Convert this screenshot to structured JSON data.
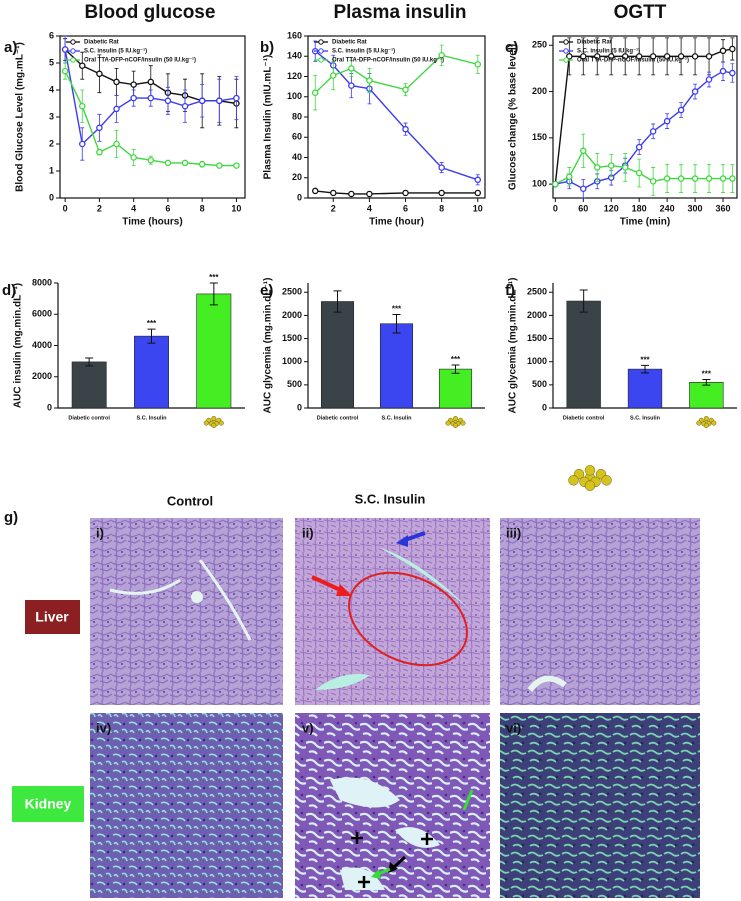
{
  "chart_data": [
    {
      "type": "line",
      "label": "a)",
      "title": "Blood glucose",
      "x_label": "Time (hours)",
      "y_label": "Blood Glucose Level (mg.mL⁻¹)",
      "x": [
        0,
        1,
        2,
        3,
        4,
        5,
        6,
        7,
        8,
        9,
        10
      ],
      "xlim": [
        -0.3,
        10.5
      ],
      "xticks": [
        0,
        2,
        4,
        6,
        8,
        10
      ],
      "ylim": [
        0,
        6
      ],
      "yticks": [
        0,
        1,
        2,
        3,
        4,
        5,
        6
      ],
      "series": [
        {
          "name": "Diabetic Rat",
          "color": "#111111",
          "values": [
            5.5,
            4.9,
            4.6,
            4.3,
            4.2,
            4.3,
            3.9,
            3.8,
            3.6,
            3.6,
            3.5
          ],
          "errors": [
            0.4,
            0.5,
            0.7,
            0.5,
            0.5,
            0.6,
            0.7,
            0.6,
            1.0,
            0.9,
            0.9
          ]
        },
        {
          "name": "S.C. insulin (5 IU.kg⁻¹)",
          "color": "#3b3bf0",
          "values": [
            5.5,
            2.0,
            2.6,
            3.3,
            3.7,
            3.7,
            3.6,
            3.4,
            3.6,
            3.6,
            3.7
          ],
          "errors": [
            0.5,
            0.6,
            0.5,
            0.5,
            0.3,
            0.3,
            0.5,
            0.6,
            0.6,
            0.8,
            0.8
          ]
        },
        {
          "name": "Oral TTA-DFP-nCOF/insulin (50 IU.kg⁻¹)",
          "color": "#3fd83f",
          "values": [
            4.7,
            3.4,
            1.7,
            2.0,
            1.5,
            1.4,
            1.3,
            1.3,
            1.25,
            1.2,
            1.2
          ],
          "errors": [
            0.3,
            0.6,
            0.1,
            0.5,
            0.3,
            0.15,
            0.05,
            0.05,
            0.1,
            0.05,
            0.05
          ]
        }
      ]
    },
    {
      "type": "line",
      "label": "b)",
      "title": "Plasma insulin",
      "x_label": "Time (hour)",
      "y_label": "Plasma Insulin (mIU.mL⁻¹)",
      "x": [
        1,
        2,
        3,
        4,
        6,
        8,
        10
      ],
      "xlim": [
        0.6,
        10.4
      ],
      "xticks": [
        2,
        4,
        6,
        8,
        10
      ],
      "ylim": [
        0,
        160
      ],
      "yticks": [
        0,
        20,
        40,
        60,
        80,
        100,
        120,
        140,
        160
      ],
      "series": [
        {
          "name": "Diabetic Rat",
          "color": "#111111",
          "values": [
            7,
            5,
            4,
            4,
            5,
            5,
            5
          ],
          "errors": [
            1,
            1,
            1,
            1,
            1,
            1,
            1
          ]
        },
        {
          "name": "S.C. insulin (5 IU.kg⁻¹)",
          "color": "#3b3bf0",
          "values": [
            145,
            131,
            111,
            108,
            68,
            30,
            18
          ],
          "errors": [
            10,
            10,
            12,
            15,
            6,
            5,
            5
          ]
        },
        {
          "name": "Oral TTA-DFP-nCOF/insulin (50 IU.kg⁻¹)",
          "color": "#3fd83f",
          "values": [
            104,
            121,
            128,
            116,
            107,
            141,
            132
          ],
          "errors": [
            17,
            14,
            8,
            12,
            6,
            10,
            9
          ]
        }
      ]
    },
    {
      "type": "line",
      "label": "c)",
      "title": "OGTT",
      "x_label": "Time (min)",
      "y_label": "Glucose change (% base level)",
      "x": [
        0,
        30,
        60,
        90,
        120,
        150,
        180,
        210,
        240,
        270,
        300,
        330,
        360,
        380
      ],
      "xlim": [
        -5,
        390
      ],
      "xticks": [
        0,
        60,
        120,
        180,
        240,
        300,
        360
      ],
      "ylim": [
        85,
        260
      ],
      "yticks": [
        100,
        150,
        200,
        250
      ],
      "series": [
        {
          "name": "Diabetic Rat",
          "color": "#111111",
          "values": [
            100,
            238,
            238,
            238,
            238,
            238,
            238,
            238,
            238,
            238,
            238,
            238,
            244,
            246
          ],
          "errors": [
            0,
            20,
            20,
            20,
            20,
            20,
            20,
            20,
            20,
            20,
            20,
            20,
            12,
            12
          ]
        },
        {
          "name": "S.C. insulin (5 IU.kg⁻¹)",
          "color": "#3b3bf0",
          "values": [
            100,
            103,
            95,
            103,
            107,
            120,
            140,
            157,
            168,
            180,
            200,
            213,
            222,
            220
          ],
          "errors": [
            0,
            8,
            10,
            8,
            8,
            8,
            8,
            8,
            8,
            8,
            8,
            8,
            10,
            10
          ]
        },
        {
          "name": "Oral TTA-DFP-nCOF/insulin (50 IU.kg⁻¹)",
          "color": "#3fd83f",
          "values": [
            100,
            108,
            136,
            118,
            120,
            118,
            112,
            103,
            106,
            106,
            106,
            106,
            106,
            106
          ],
          "errors": [
            0,
            10,
            18,
            15,
            12,
            15,
            15,
            15,
            15,
            15,
            15,
            15,
            15,
            15
          ]
        }
      ]
    },
    {
      "type": "bar",
      "label": "d)",
      "y_label": "AUC insulin (mg.min.dL⁻¹)",
      "categories": [
        "Diabetic control",
        "S.C. Insulin",
        null
      ],
      "values": [
        2950,
        4600,
        7300
      ],
      "errors": [
        250,
        450,
        700
      ],
      "colors": [
        "#3a4348",
        "#3c46f0",
        "#44ee22"
      ],
      "significance": [
        null,
        "***",
        "***"
      ],
      "ylim": [
        0,
        8000
      ],
      "yticks": [
        0,
        2000,
        4000,
        6000,
        8000
      ]
    },
    {
      "type": "bar",
      "label": "e)",
      "y_label": "AUC glycemia (mg.min.dL⁻¹)",
      "categories": [
        "Diabetic control",
        "S.C. Insulin",
        null
      ],
      "values": [
        2300,
        1820,
        840
      ],
      "errors": [
        230,
        200,
        90
      ],
      "colors": [
        "#3a4348",
        "#3c46f0",
        "#44ee22"
      ],
      "significance": [
        null,
        "***",
        "***"
      ],
      "ylim": [
        0,
        2700
      ],
      "yticks": [
        0,
        500,
        1000,
        1500,
        2000,
        2500
      ]
    },
    {
      "type": "bar",
      "label": "f)",
      "y_label": "AUC glycemia (mg.min.dL⁻¹)",
      "categories": [
        "Diabetic control",
        "S.C. Insulin",
        null
      ],
      "values": [
        2310,
        840,
        555
      ],
      "errors": [
        240,
        80,
        60
      ],
      "colors": [
        "#3a4348",
        "#3c46f0",
        "#44ee22"
      ],
      "significance": [
        null,
        "***",
        "***"
      ],
      "ylim": [
        0,
        2700
      ],
      "yticks": [
        0,
        500,
        1000,
        1500,
        2000,
        2500
      ]
    }
  ],
  "section_g": {
    "label": "g)",
    "columns": [
      "Control",
      "S.C. Insulin"
    ],
    "rows": [
      "Liver",
      "Kidney"
    ],
    "panels": [
      "i)",
      "ii)",
      "iii)",
      "iv)",
      "v)",
      "vi)"
    ]
  }
}
